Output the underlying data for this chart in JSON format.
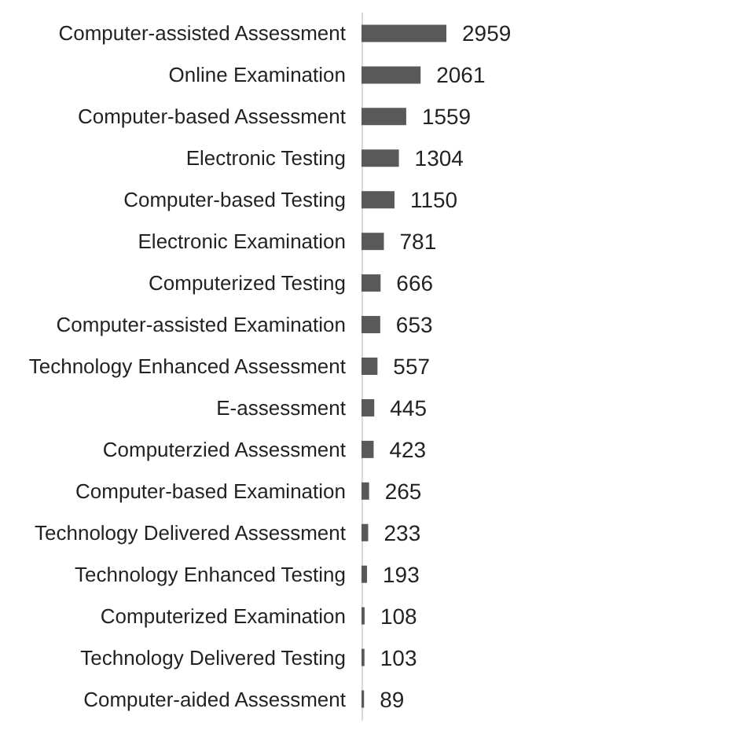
{
  "chart_data": {
    "type": "bar",
    "orientation": "horizontal",
    "data_labels": true,
    "color": "#595959",
    "categories": [
      "Computer-assisted Assessment",
      "Online Examination",
      "Computer-based Assessment",
      "Electronic Testing",
      "Computer-based Testing",
      "Electronic Examination",
      "Computerized Testing",
      "Computer-assisted Examination",
      "Technology Enhanced Assessment",
      "E-assessment",
      "Computerzied Assessment",
      "Computer-based Examination",
      "Technology Delivered Assessment",
      "Technology Enhanced Testing",
      "Computerized Examination",
      "Technology Delivered Testing",
      "Computer-aided Assessment"
    ],
    "values": [
      2959,
      2061,
      1559,
      1304,
      1150,
      781,
      666,
      653,
      557,
      445,
      423,
      265,
      233,
      193,
      108,
      103,
      89
    ]
  }
}
